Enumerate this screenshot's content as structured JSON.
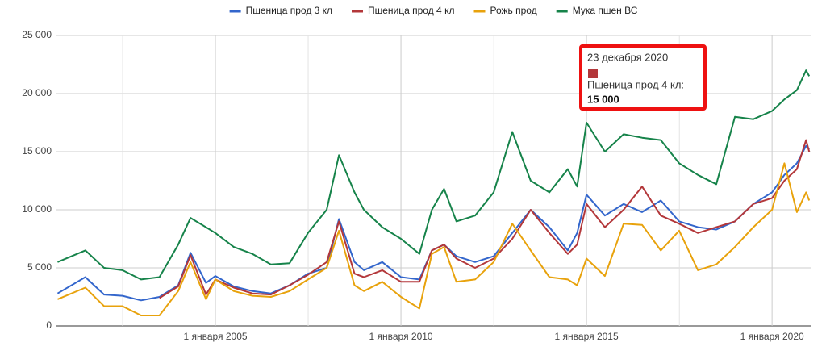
{
  "chart_data": {
    "type": "line",
    "x": [
      "2000-10-01",
      "2001-07-01",
      "2002-01-01",
      "2002-07-01",
      "2003-01-01",
      "2003-07-01",
      "2004-01-01",
      "2004-05-01",
      "2004-10-01",
      "2005-01-01",
      "2005-07-01",
      "2006-01-01",
      "2006-07-01",
      "2007-01-01",
      "2007-07-01",
      "2008-01-01",
      "2008-05-01",
      "2008-10-01",
      "2009-01-01",
      "2009-07-01",
      "2010-01-01",
      "2010-07-01",
      "2010-11-01",
      "2011-03-01",
      "2011-07-01",
      "2012-01-01",
      "2012-07-01",
      "2013-01-01",
      "2013-07-01",
      "2014-01-01",
      "2014-07-01",
      "2014-10-01",
      "2015-01-01",
      "2015-07-01",
      "2016-01-01",
      "2016-07-01",
      "2017-01-01",
      "2017-07-01",
      "2018-01-01",
      "2018-07-01",
      "2019-01-01",
      "2019-07-01",
      "2020-01-01",
      "2020-05-01",
      "2020-09-01",
      "2020-12-01",
      "2021-01-01"
    ],
    "series": [
      {
        "name": "Пшеница прод 3 кл",
        "color": "#3366cc",
        "values": [
          2800,
          4200,
          2700,
          2600,
          2200,
          2500,
          3500,
          6300,
          3700,
          4300,
          3400,
          3000,
          2800,
          3500,
          4500,
          5000,
          9200,
          5500,
          4800,
          5500,
          4200,
          4000,
          6500,
          7000,
          6000,
          5500,
          6000,
          8000,
          10000,
          8500,
          6500,
          8000,
          11300,
          9500,
          10500,
          9800,
          10800,
          9000,
          8500,
          8300,
          9000,
          10500,
          11500,
          13000,
          14000,
          15500,
          15200
        ]
      },
      {
        "name": "Пшеница прод 4 кл",
        "color": "#b3373a",
        "values": [
          null,
          null,
          null,
          null,
          null,
          2400,
          3400,
          6100,
          2700,
          4000,
          3300,
          2800,
          2700,
          3500,
          4400,
          5500,
          9000,
          4500,
          4200,
          4800,
          3800,
          3800,
          6500,
          7000,
          5800,
          5000,
          5800,
          7500,
          10000,
          8000,
          6200,
          7000,
          10500,
          8500,
          10000,
          12000,
          9500,
          8800,
          8000,
          8500,
          9000,
          10500,
          11000,
          12500,
          13500,
          16000,
          15000
        ]
      },
      {
        "name": "Рожь прод",
        "color": "#e8a20c",
        "values": [
          2300,
          3300,
          1700,
          1700,
          900,
          900,
          3000,
          5500,
          2300,
          4000,
          3000,
          2600,
          2500,
          3000,
          4000,
          5000,
          8200,
          3500,
          3000,
          3800,
          2500,
          1500,
          6200,
          6800,
          3800,
          4000,
          5500,
          8800,
          6500,
          4200,
          4000,
          3500,
          5800,
          4300,
          8800,
          8700,
          6500,
          8200,
          4800,
          5300,
          6800,
          8500,
          10000,
          14000,
          9800,
          11500,
          10800
        ]
      },
      {
        "name": "Мука пшен ВС",
        "color": "#16834a",
        "values": [
          5500,
          6500,
          5000,
          4800,
          4000,
          4200,
          7000,
          9300,
          8500,
          8000,
          6800,
          6200,
          5300,
          5400,
          8000,
          10000,
          14700,
          11500,
          10000,
          8500,
          7500,
          6200,
          10000,
          11800,
          9000,
          9500,
          11500,
          16700,
          12500,
          11500,
          13500,
          12000,
          17500,
          15000,
          16500,
          16200,
          16000,
          14000,
          13000,
          12200,
          18000,
          17800,
          18500,
          19500,
          20300,
          22000,
          21500
        ]
      }
    ],
    "xlim": [
      "2000-09-20",
      "2021-01-15"
    ],
    "xticks": [
      {
        "value": "2005-01-01",
        "label": "1 января 2005"
      },
      {
        "value": "2010-01-01",
        "label": "1 января 2010"
      },
      {
        "value": "2015-01-01",
        "label": "1 января 2015"
      },
      {
        "value": "2020-01-01",
        "label": "1 января 2020"
      }
    ],
    "minor_xticks": [
      "2002-07-03",
      "2007-07-03",
      "2012-07-03",
      "2017-07-03"
    ],
    "ylim": [
      0,
      25000
    ],
    "yticks": [
      0,
      {
        "value": 5000,
        "label": "5 000"
      },
      {
        "value": 10000,
        "label": "10 000"
      },
      {
        "value": 15000,
        "label": "15 000"
      },
      {
        "value": 20000,
        "label": "20 000"
      },
      {
        "value": 25000,
        "label": "25 000"
      }
    ],
    "grid": true,
    "legend": "top",
    "tooltip": {
      "date": "23 декабря 2020",
      "series_label": "Пшеница прод 4 кл:",
      "value": {
        "value": 15000,
        "label": "15 000"
      },
      "color": "#b3373a"
    }
  }
}
